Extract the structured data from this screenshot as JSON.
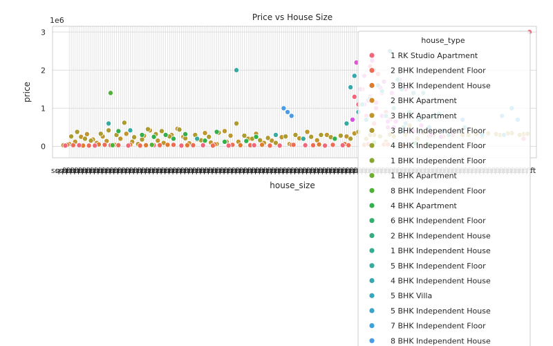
{
  "chart_data": {
    "type": "scatter",
    "title": "Price vs House Size",
    "xlabel": "house_size",
    "ylabel": "price",
    "y_offset_label": "1e6",
    "y_scale": 1000000,
    "ylim": [
      -300000,
      3150000
    ],
    "yticks": [
      0,
      1000000,
      2000000,
      3000000
    ],
    "ytick_labels": [
      "0",
      "1",
      "2",
      "3"
    ],
    "x_categorical": true,
    "x_category_count": 240,
    "xtick_label_sample": "sq ft",
    "grid": true,
    "legend_placement": "upper right",
    "legend": {
      "title": "house_type",
      "entries": [
        {
          "name": "1 RK Studio Apartment",
          "color": "#f0677a"
        },
        {
          "name": "2 BHK Independent Floor",
          "color": "#ee6c55"
        },
        {
          "name": "3 BHK Independent House",
          "color": "#e07a2f"
        },
        {
          "name": "2 BHK Apartment",
          "color": "#d08b2b"
        },
        {
          "name": "3 BHK Apartment",
          "color": "#be952e"
        },
        {
          "name": "3 BHK Independent Floor",
          "color": "#ad9b2f"
        },
        {
          "name": "4 BHK Independent Floor",
          "color": "#9aa12f"
        },
        {
          "name": "1 BHK Independent Floor",
          "color": "#86a730"
        },
        {
          "name": "1 BHK Apartment",
          "color": "#6fad31"
        },
        {
          "name": "8 BHK Independent Floor",
          "color": "#4fb135"
        },
        {
          "name": "4 BHK Apartment",
          "color": "#33b04d"
        },
        {
          "name": "6 BHK Independent Floor",
          "color": "#33ae6c"
        },
        {
          "name": "2 BHK Independent House",
          "color": "#34ad81"
        },
        {
          "name": "1 BHK Independent House",
          "color": "#35ab92"
        },
        {
          "name": "5 BHK Independent Floor",
          "color": "#36aa9f"
        },
        {
          "name": "4 BHK Independent House",
          "color": "#37a8ae"
        },
        {
          "name": "5 BHK Villa",
          "color": "#38a7bb"
        },
        {
          "name": "5 BHK Independent House",
          "color": "#39a5c9"
        },
        {
          "name": "7 BHK Independent Floor",
          "color": "#3ba3d9"
        },
        {
          "name": "8 BHK Independent House",
          "color": "#4a9be8"
        }
      ]
    },
    "series": [
      {
        "color": "#be952e",
        "x": [
          2,
          5,
          8,
          11,
          14,
          17,
          19,
          22,
          24,
          28,
          31,
          34,
          37,
          40,
          43,
          46,
          50,
          53,
          57,
          60,
          63,
          66,
          70,
          74,
          77,
          80,
          84,
          87,
          91,
          96,
          100,
          104,
          108,
          113,
          117,
          122,
          126,
          131,
          136,
          140,
          146,
          150,
          156,
          160,
          166,
          170,
          176,
          182,
          188,
          195,
          200,
          205,
          212,
          218,
          224,
          230,
          236
        ],
        "y": [
          30000,
          60000,
          120000,
          250000,
          320000,
          180000,
          90000,
          260000,
          140000,
          40000,
          200000,
          330000,
          120000,
          60000,
          280000,
          420000,
          150000,
          90000,
          300000,
          460000,
          250000,
          80000,
          180000,
          350000,
          100000,
          60000,
          400000,
          280000,
          120000,
          200000,
          330000,
          90000,
          150000,
          240000,
          60000,
          210000,
          380000,
          160000,
          300000,
          200000,
          260000,
          340000,
          200000,
          300000,
          120000,
          260000,
          310000,
          200000,
          280000,
          260000,
          320000,
          300000,
          320000,
          340000,
          300000,
          350000,
          320000
        ]
      },
      {
        "color": "#ad9b2f",
        "x": [
          6,
          9,
          13,
          16,
          21,
          25,
          29,
          33,
          38,
          42,
          45,
          49,
          52,
          56,
          61,
          64,
          69,
          72,
          76,
          81,
          85,
          90,
          94,
          98,
          102,
          106,
          110,
          115,
          120,
          124,
          128,
          133,
          138,
          143,
          148,
          152,
          158,
          163,
          168,
          173,
          178,
          185,
          190,
          198,
          208,
          215,
          222,
          228,
          234,
          238
        ],
        "y": [
          260000,
          380000,
          200000,
          150000,
          330000,
          420000,
          300000,
          620000,
          240000,
          180000,
          450000,
          320000,
          400000,
          260000,
          440000,
          210000,
          300000,
          160000,
          250000,
          360000,
          120000,
          600000,
          280000,
          200000,
          160000,
          220000,
          90000,
          260000,
          300000,
          210000,
          250000,
          300000,
          240000,
          280000,
          200000,
          380000,
          300000,
          260000,
          310000,
          400000,
          550000,
          360000,
          300000,
          340000,
          300000,
          260000,
          320000,
          340000,
          300000,
          330000
        ]
      },
      {
        "color": "#e07a2f",
        "x": [
          4,
          12,
          20,
          27,
          36,
          44,
          55,
          65,
          79,
          92,
          103,
          118,
          132,
          145,
          155,
          165,
          175
        ],
        "y": [
          40000,
          20000,
          50000,
          30000,
          40000,
          30000,
          40000,
          30000,
          50000,
          30000,
          40000,
          40000,
          50000,
          60000,
          40000,
          50000,
          40000
        ]
      },
      {
        "color": "#ee6c55",
        "x": [
          7,
          15,
          23,
          30,
          41,
          51,
          58,
          68,
          78,
          88,
          97,
          107,
          119,
          129,
          139,
          147,
          157,
          167,
          186
        ],
        "y": [
          30000,
          20000,
          40000,
          30000,
          20000,
          30000,
          40000,
          30000,
          20000,
          40000,
          30000,
          20000,
          40000,
          30000,
          40000,
          30000,
          60000,
          50000,
          40000
        ]
      },
      {
        "color": "#f0677a",
        "x": [
          3,
          10,
          18,
          26,
          35,
          48,
          62,
          73,
          86,
          99,
          112,
          125,
          135,
          144,
          150,
          152,
          154,
          156,
          158,
          160,
          162,
          164,
          166,
          168,
          200,
          236,
          239
        ],
        "y": [
          20000,
          30000,
          20000,
          30000,
          20000,
          30000,
          20000,
          30000,
          20000,
          30000,
          20000,
          30000,
          20000,
          30000,
          1300000,
          1100000,
          1500000,
          800000,
          2100000,
          600000,
          1900000,
          1400000,
          900000,
          700000,
          300000,
          200000,
          3000000
        ]
      },
      {
        "color": "#e055d0",
        "x": [
          151,
          153,
          155,
          157,
          159,
          161,
          163,
          165,
          167,
          169,
          171,
          173,
          176,
          180,
          184,
          189,
          194,
          199
        ],
        "y": [
          2200000,
          1500000,
          1850000,
          1200000,
          2250000,
          1000000,
          1550000,
          1700000,
          500000,
          1400000,
          650000,
          1750000,
          1500000,
          400000,
          550000,
          300000,
          250000,
          330000
        ]
      },
      {
        "color": "#d94fe2",
        "x": [
          149,
          152,
          155,
          158,
          161,
          164,
          167,
          170
        ],
        "y": [
          700000,
          900000,
          1100000,
          1300000,
          1150000,
          800000,
          650000,
          500000
        ]
      },
      {
        "color": "#37a8ae",
        "x": [
          148,
          150,
          152,
          154,
          156,
          158,
          160,
          162,
          164,
          166,
          168,
          170,
          172,
          174,
          176,
          178,
          180,
          185,
          190
        ],
        "y": [
          1550000,
          1850000,
          900000,
          1100000,
          700000,
          1250000,
          2000000,
          1600000,
          1450000,
          800000,
          2500000,
          1000000,
          1750000,
          1500000,
          600000,
          900000,
          1400000,
          1400000,
          800000
        ]
      },
      {
        "color": "#36aa9f",
        "x": [
          25,
          36,
          70,
          90,
          110,
          124,
          146,
          175,
          193,
          198
        ],
        "y": [
          600000,
          420000,
          200000,
          2000000,
          300000,
          200000,
          600000,
          500000,
          850000,
          300000
        ]
      },
      {
        "color": "#33b04d",
        "x": [
          30,
          42,
          48,
          54,
          58,
          64,
          74,
          80,
          84,
          95,
          100,
          140,
          181
        ],
        "y": [
          400000,
          300000,
          250000,
          300000,
          200000,
          320000,
          150000,
          380000,
          120000,
          140000,
          250000,
          200000,
          80000
        ]
      },
      {
        "color": "#4fb135",
        "x": [
          26,
          27,
          47,
          160,
          187
        ],
        "y": [
          1400000,
          30000,
          40000,
          100000,
          60000
        ]
      },
      {
        "color": "#4a9be8",
        "x": [
          114,
          116,
          118
        ],
        "y": [
          1000000,
          900000,
          800000
        ]
      },
      {
        "color": "#3ba3d9",
        "x": [
          195,
          205,
          215,
          225,
          230,
          233
        ],
        "y": [
          400000,
          700000,
          300000,
          800000,
          1000000,
          700000
        ]
      },
      {
        "color": "#39a5c9",
        "x": [
          174,
          183,
          188,
          206,
          226
        ],
        "y": [
          400000,
          700000,
          500000,
          500000,
          300000
        ]
      }
    ]
  }
}
